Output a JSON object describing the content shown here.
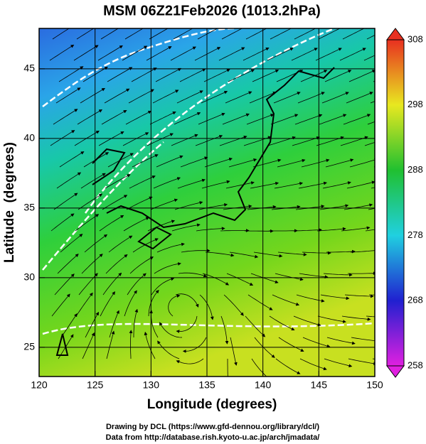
{
  "map": {
    "title": "MSM 06Z21Feb2026 (1013.2hPa)",
    "x_axis": {
      "label": "Longitude (degrees)",
      "range": [
        120,
        150
      ],
      "ticks": [
        120,
        125,
        130,
        135,
        140,
        145,
        150
      ]
    },
    "y_axis": {
      "label": "Latitude  (degrees)",
      "range": [
        22.9,
        47.9
      ],
      "ticks": [
        25,
        30,
        35,
        40,
        45
      ]
    },
    "colorbar": {
      "range": [
        258,
        308
      ],
      "ticks": [
        258,
        268,
        278,
        288,
        298,
        308
      ]
    },
    "footer": [
      "Drawing by DCL (https://www.gfd-dennou.org/library/dcl/)",
      "Data from http://database.rish.kyoto-u.ac.jp/arch/jmadata/"
    ]
  }
}
